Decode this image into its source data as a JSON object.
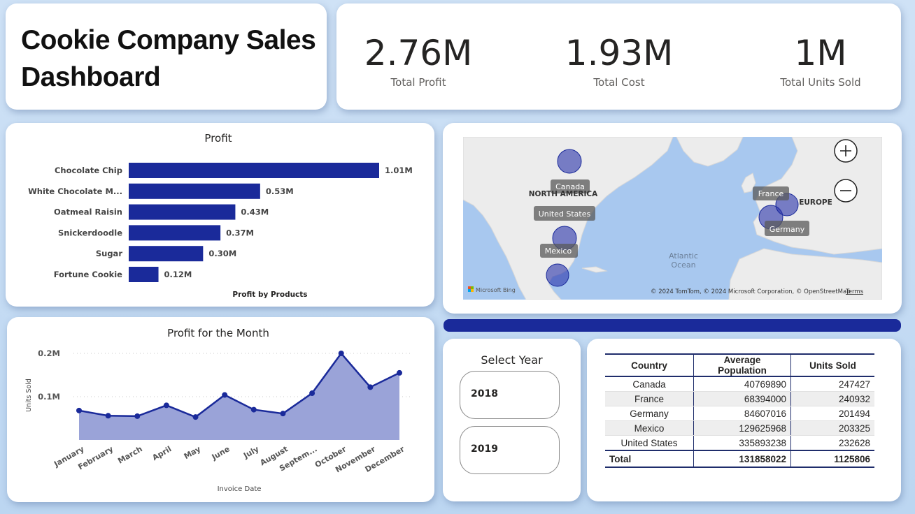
{
  "title": "Cookie Company Sales Dashboard",
  "kpis": [
    {
      "value": "2.76M",
      "label": "Total Profit"
    },
    {
      "value": "1.93M",
      "label": "Total Cost"
    },
    {
      "value": "1M",
      "label": "Total Units Sold"
    }
  ],
  "colors": {
    "bar": "#1a2a9a",
    "line": "#1a2a9a",
    "area": "#9aa3d8",
    "accent": "#1a2a9a"
  },
  "map": {
    "labels": {
      "canada": "Canada",
      "united_states": "United States",
      "mexico": "Mexico",
      "france": "France",
      "germany": "Germany",
      "north_america": "NORTH AMERICA",
      "europe": "EUROPE",
      "atlantic": "Atlantic",
      "ocean": "Ocean"
    },
    "attribution": "© 2024 TomTom, © 2024 Microsoft Corporation, © OpenStreetMap",
    "terms": "Terms",
    "bing": "Microsoft Bing"
  },
  "slicer": {
    "title": "Select Year",
    "options": [
      "2018",
      "2019"
    ]
  },
  "table": {
    "headers": [
      "Country",
      "Average Population",
      "Units Sold"
    ],
    "rows": [
      [
        "Canada",
        "40769890",
        "247427"
      ],
      [
        "France",
        "68394000",
        "240932"
      ],
      [
        "Germany",
        "84607016",
        "201494"
      ],
      [
        "Mexico",
        "129625968",
        "203325"
      ],
      [
        "United States",
        "335893238",
        "232628"
      ]
    ],
    "total": [
      "Total",
      "131858022",
      "1125806"
    ]
  },
  "chart_data": [
    {
      "type": "bar",
      "title": "Profit",
      "xlabel": "Profit by Products",
      "categories": [
        "Chocolate Chip",
        "White Chocolate M...",
        "Oatmeal Raisin",
        "Snickerdoodle",
        "Sugar",
        "Fortune Cookie"
      ],
      "values": [
        1.01,
        0.53,
        0.43,
        0.37,
        0.3,
        0.12
      ],
      "data_labels": [
        "1.01M",
        "0.53M",
        "0.43M",
        "0.37M",
        "0.30M",
        "0.12M"
      ],
      "units": "M"
    },
    {
      "type": "area",
      "title": "Profit for the Month",
      "xlabel": "Invoice Date",
      "ylabel": "Units Sold",
      "categories": [
        "January",
        "February",
        "March",
        "April",
        "May",
        "June",
        "July",
        "August",
        "Septem...",
        "October",
        "November",
        "December"
      ],
      "values": [
        0.068,
        0.056,
        0.055,
        0.08,
        0.053,
        0.104,
        0.07,
        0.061,
        0.108,
        0.2,
        0.122,
        0.155
      ],
      "yticks": [
        0.1,
        0.2
      ],
      "ytick_labels": [
        "0.1M",
        "0.2M"
      ],
      "ylim": [
        0,
        0.2
      ]
    }
  ]
}
